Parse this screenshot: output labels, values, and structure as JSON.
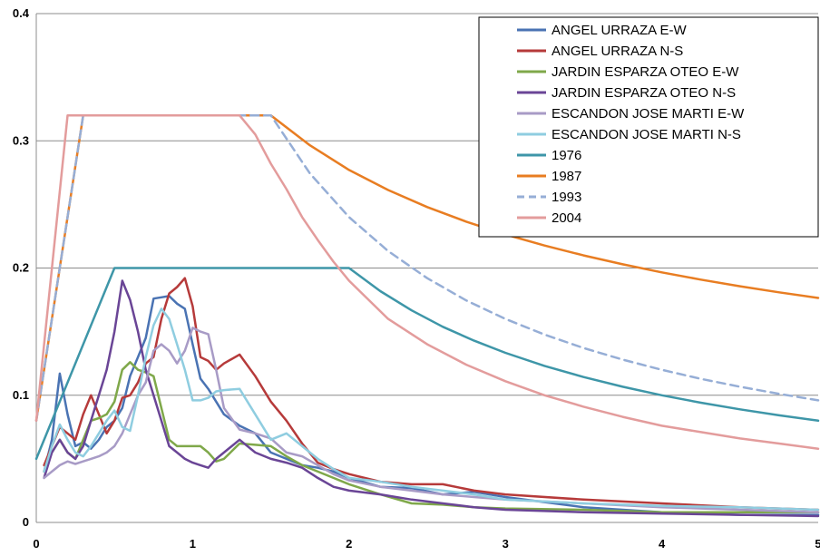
{
  "chart_data": {
    "type": "line",
    "title": "",
    "xlabel": "",
    "ylabel": "",
    "xlim": [
      0,
      5
    ],
    "ylim": [
      0,
      0.4
    ],
    "x_ticks": [
      "0",
      "1",
      "2",
      "3",
      "4",
      "5"
    ],
    "y_ticks": [
      "0",
      "0.1",
      "0.2",
      "0.3",
      "0.4"
    ],
    "grid": "horizontal",
    "legend_position": "top-right",
    "series": [
      {
        "name": "ANGEL URRAZA E-W",
        "color": "#4a73b3",
        "dash": false,
        "x": [
          0.05,
          0.1,
          0.15,
          0.2,
          0.25,
          0.3,
          0.35,
          0.4,
          0.45,
          0.5,
          0.55,
          0.6,
          0.65,
          0.7,
          0.75,
          0.8,
          0.85,
          0.9,
          0.95,
          1.0,
          1.05,
          1.1,
          1.15,
          1.2,
          1.3,
          1.4,
          1.5,
          1.6,
          1.7,
          1.8,
          1.9,
          2.0,
          2.2,
          2.4,
          2.6,
          2.8,
          3.0,
          3.5,
          4.0,
          4.5,
          5.0
        ],
        "y": [
          0.04,
          0.065,
          0.117,
          0.085,
          0.06,
          0.063,
          0.058,
          0.065,
          0.075,
          0.08,
          0.09,
          0.115,
          0.13,
          0.145,
          0.176,
          0.177,
          0.178,
          0.172,
          0.168,
          0.14,
          0.113,
          0.105,
          0.095,
          0.085,
          0.076,
          0.07,
          0.055,
          0.05,
          0.045,
          0.043,
          0.04,
          0.035,
          0.028,
          0.027,
          0.022,
          0.024,
          0.02,
          0.012,
          0.008,
          0.006,
          0.006
        ]
      },
      {
        "name": "ANGEL URRAZA N-S",
        "color": "#b63a3a",
        "dash": false,
        "x": [
          0.05,
          0.1,
          0.15,
          0.2,
          0.25,
          0.3,
          0.35,
          0.4,
          0.45,
          0.5,
          0.55,
          0.6,
          0.65,
          0.7,
          0.75,
          0.8,
          0.85,
          0.9,
          0.95,
          1.0,
          1.05,
          1.1,
          1.15,
          1.2,
          1.3,
          1.4,
          1.5,
          1.6,
          1.7,
          1.8,
          1.9,
          2.0,
          2.2,
          2.4,
          2.6,
          2.8,
          3.0,
          3.5,
          4.0,
          4.5,
          5.0
        ],
        "y": [
          0.045,
          0.06,
          0.075,
          0.07,
          0.065,
          0.085,
          0.1,
          0.085,
          0.07,
          0.08,
          0.098,
          0.1,
          0.11,
          0.125,
          0.13,
          0.16,
          0.18,
          0.185,
          0.192,
          0.17,
          0.13,
          0.127,
          0.12,
          0.125,
          0.132,
          0.115,
          0.095,
          0.08,
          0.062,
          0.047,
          0.042,
          0.038,
          0.032,
          0.03,
          0.03,
          0.025,
          0.022,
          0.018,
          0.015,
          0.012,
          0.01
        ]
      },
      {
        "name": "JARDIN ESPARZA OTEO E-W",
        "color": "#7fa84a",
        "dash": false,
        "x": [
          0.05,
          0.1,
          0.15,
          0.2,
          0.25,
          0.3,
          0.35,
          0.4,
          0.45,
          0.5,
          0.55,
          0.6,
          0.65,
          0.7,
          0.75,
          0.8,
          0.85,
          0.9,
          0.95,
          1.0,
          1.05,
          1.1,
          1.15,
          1.2,
          1.3,
          1.4,
          1.5,
          1.6,
          1.7,
          1.8,
          1.9,
          2.0,
          2.2,
          2.4,
          2.6,
          2.8,
          3.0,
          3.5,
          4.0,
          4.5,
          5.0
        ],
        "y": [
          0.04,
          0.055,
          0.065,
          0.055,
          0.05,
          0.065,
          0.08,
          0.082,
          0.085,
          0.095,
          0.12,
          0.126,
          0.12,
          0.118,
          0.115,
          0.09,
          0.065,
          0.06,
          0.06,
          0.06,
          0.06,
          0.055,
          0.048,
          0.05,
          0.062,
          0.061,
          0.06,
          0.052,
          0.045,
          0.04,
          0.035,
          0.03,
          0.022,
          0.015,
          0.014,
          0.012,
          0.011,
          0.01,
          0.008,
          0.008,
          0.008
        ]
      },
      {
        "name": "JARDIN ESPARZA OTEO N-S",
        "color": "#6a4596",
        "dash": false,
        "x": [
          0.05,
          0.1,
          0.15,
          0.2,
          0.25,
          0.3,
          0.35,
          0.4,
          0.45,
          0.5,
          0.55,
          0.6,
          0.65,
          0.7,
          0.75,
          0.8,
          0.85,
          0.9,
          0.95,
          1.0,
          1.05,
          1.1,
          1.15,
          1.2,
          1.3,
          1.4,
          1.5,
          1.6,
          1.7,
          1.8,
          1.9,
          2.0,
          2.2,
          2.4,
          2.6,
          2.8,
          3.0,
          3.5,
          4.0,
          4.5,
          5.0
        ],
        "y": [
          0.035,
          0.055,
          0.065,
          0.055,
          0.05,
          0.06,
          0.08,
          0.1,
          0.12,
          0.15,
          0.19,
          0.175,
          0.15,
          0.12,
          0.1,
          0.08,
          0.06,
          0.055,
          0.05,
          0.047,
          0.045,
          0.043,
          0.05,
          0.055,
          0.065,
          0.055,
          0.05,
          0.047,
          0.043,
          0.035,
          0.028,
          0.025,
          0.022,
          0.018,
          0.015,
          0.012,
          0.01,
          0.008,
          0.007,
          0.006,
          0.005
        ]
      },
      {
        "name": "ESCANDON JOSE MARTI E-W",
        "color": "#a89bc6",
        "dash": false,
        "x": [
          0.05,
          0.1,
          0.15,
          0.2,
          0.25,
          0.3,
          0.35,
          0.4,
          0.45,
          0.5,
          0.55,
          0.6,
          0.65,
          0.7,
          0.75,
          0.8,
          0.85,
          0.9,
          0.95,
          1.0,
          1.05,
          1.1,
          1.15,
          1.2,
          1.3,
          1.4,
          1.5,
          1.6,
          1.7,
          1.8,
          1.9,
          2.0,
          2.2,
          2.4,
          2.6,
          2.8,
          3.0,
          3.5,
          4.0,
          4.5,
          5.0
        ],
        "y": [
          0.035,
          0.04,
          0.045,
          0.048,
          0.046,
          0.048,
          0.05,
          0.052,
          0.055,
          0.06,
          0.07,
          0.085,
          0.1,
          0.11,
          0.135,
          0.14,
          0.135,
          0.125,
          0.135,
          0.153,
          0.15,
          0.148,
          0.12,
          0.09,
          0.073,
          0.07,
          0.066,
          0.055,
          0.052,
          0.045,
          0.038,
          0.033,
          0.028,
          0.025,
          0.022,
          0.02,
          0.018,
          0.015,
          0.012,
          0.01,
          0.008
        ]
      },
      {
        "name": "ESCANDON JOSE MARTI N-S",
        "color": "#8fcde0",
        "dash": false,
        "x": [
          0.05,
          0.1,
          0.15,
          0.2,
          0.25,
          0.3,
          0.35,
          0.4,
          0.45,
          0.5,
          0.55,
          0.6,
          0.65,
          0.7,
          0.75,
          0.8,
          0.85,
          0.9,
          0.95,
          1.0,
          1.05,
          1.1,
          1.15,
          1.2,
          1.3,
          1.4,
          1.5,
          1.6,
          1.7,
          1.8,
          1.9,
          2.0,
          2.2,
          2.4,
          2.6,
          2.8,
          3.0,
          3.5,
          4.0,
          4.5,
          5.0
        ],
        "y": [
          0.04,
          0.06,
          0.077,
          0.065,
          0.055,
          0.052,
          0.06,
          0.07,
          0.08,
          0.088,
          0.075,
          0.072,
          0.1,
          0.13,
          0.155,
          0.168,
          0.16,
          0.14,
          0.12,
          0.096,
          0.096,
          0.098,
          0.103,
          0.104,
          0.105,
          0.085,
          0.065,
          0.07,
          0.06,
          0.05,
          0.042,
          0.035,
          0.032,
          0.028,
          0.025,
          0.022,
          0.018,
          0.015,
          0.013,
          0.012,
          0.01
        ]
      },
      {
        "name": "1976",
        "color": "#3e96a8",
        "dash": false,
        "x": [
          0,
          0.5,
          1.0,
          1.5,
          2.0,
          2.2,
          2.4,
          2.6,
          2.8,
          3.0,
          3.25,
          3.5,
          3.75,
          4.0,
          4.25,
          4.5,
          4.75,
          5.0
        ],
        "y": [
          0.05,
          0.2,
          0.2,
          0.2,
          0.2,
          0.1818,
          0.1667,
          0.1538,
          0.1429,
          0.1333,
          0.1231,
          0.1143,
          0.1067,
          0.1,
          0.0941,
          0.0889,
          0.0842,
          0.08
        ]
      },
      {
        "name": "1987",
        "color": "#e87d22",
        "dash": false,
        "x": [
          0,
          0.3,
          0.8,
          1.5,
          1.75,
          2.0,
          2.25,
          2.5,
          2.75,
          3.0,
          3.25,
          3.5,
          3.75,
          4.0,
          4.25,
          4.5,
          4.75,
          5.0
        ],
        "y": [
          0.08,
          0.32,
          0.32,
          0.32,
          0.2965,
          0.2771,
          0.2613,
          0.2479,
          0.2364,
          0.2264,
          0.2177,
          0.2099,
          0.2029,
          0.1966,
          0.1909,
          0.1857,
          0.1809,
          0.1765
        ]
      },
      {
        "name": "1993",
        "color": "#96aed6",
        "dash": true,
        "x": [
          0,
          0.3,
          0.8,
          1.5,
          1.75,
          2.0,
          2.25,
          2.5,
          2.75,
          3.0,
          3.25,
          3.5,
          3.75,
          4.0,
          4.25,
          4.5,
          4.75,
          5.0
        ],
        "y": [
          0.08,
          0.32,
          0.32,
          0.32,
          0.2743,
          0.24,
          0.2133,
          0.192,
          0.1745,
          0.16,
          0.1477,
          0.1371,
          0.128,
          0.12,
          0.1129,
          0.1067,
          0.1011,
          0.096
        ]
      },
      {
        "name": "2004",
        "color": "#e39c9c",
        "dash": false,
        "x": [
          0,
          0.2,
          0.6,
          1.3,
          1.4,
          1.5,
          1.6,
          1.7,
          1.8,
          1.9,
          2.0,
          2.25,
          2.5,
          2.75,
          3.0,
          3.25,
          3.5,
          3.75,
          4.0,
          4.25,
          4.5,
          4.75,
          5.0
        ],
        "y": [
          0.08,
          0.32,
          0.32,
          0.32,
          0.305,
          0.282,
          0.262,
          0.24,
          0.222,
          0.205,
          0.19,
          0.16,
          0.14,
          0.124,
          0.111,
          0.1,
          0.091,
          0.083,
          0.076,
          0.071,
          0.066,
          0.062,
          0.058
        ]
      }
    ]
  }
}
